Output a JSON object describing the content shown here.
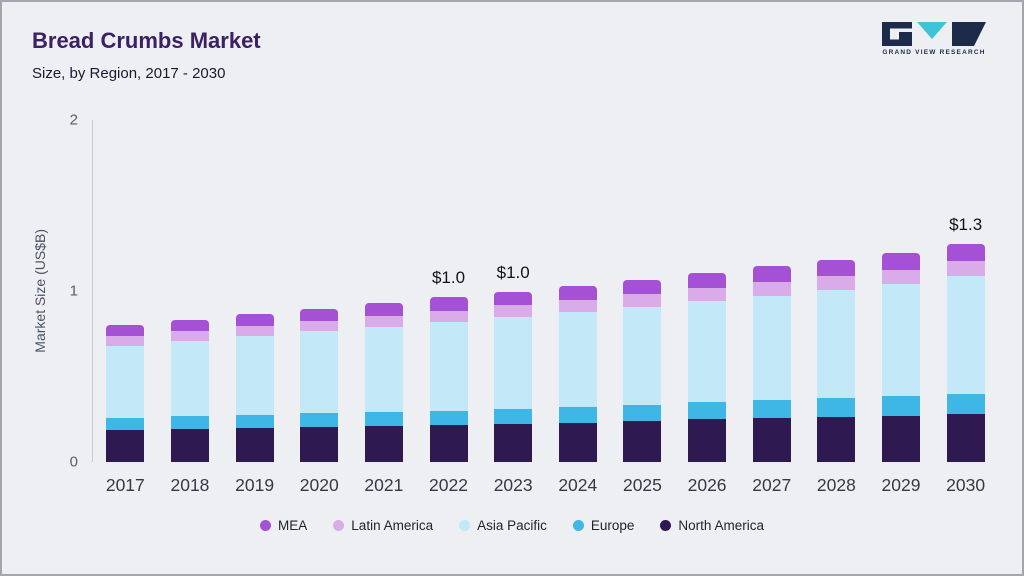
{
  "header": {
    "title": "Bread Crumbs Market",
    "subtitle": "Size, by Region, 2017 - 2030",
    "logo_text": "GRAND VIEW RESEARCH"
  },
  "chart_data": {
    "type": "bar",
    "stacked": true,
    "title": "Bread Crumbs Market Size, by Region, 2017 - 2030",
    "xlabel": "",
    "ylabel": "Market Size (US$B)",
    "ylim": [
      0,
      2
    ],
    "yticks": [
      0,
      1,
      2
    ],
    "grid": false,
    "legend_position": "bottom",
    "categories": [
      "2017",
      "2018",
      "2019",
      "2020",
      "2021",
      "2022",
      "2023",
      "2024",
      "2025",
      "2026",
      "2027",
      "2028",
      "2029",
      "2030"
    ],
    "series": [
      {
        "name": "North America",
        "color": "#2e1950",
        "values": [
          0.19,
          0.195,
          0.2,
          0.205,
          0.21,
          0.215,
          0.22,
          0.23,
          0.24,
          0.25,
          0.258,
          0.264,
          0.27,
          0.28
        ]
      },
      {
        "name": "Europe",
        "color": "#3eb6e6",
        "values": [
          0.07,
          0.073,
          0.076,
          0.079,
          0.082,
          0.086,
          0.089,
          0.092,
          0.096,
          0.1,
          0.105,
          0.11,
          0.115,
          0.12
        ]
      },
      {
        "name": "Asia Pacific",
        "color": "#c3e9f8",
        "values": [
          0.42,
          0.44,
          0.46,
          0.48,
          0.5,
          0.52,
          0.54,
          0.555,
          0.572,
          0.59,
          0.61,
          0.632,
          0.655,
          0.685
        ]
      },
      {
        "name": "Latin America",
        "color": "#d9abe9",
        "values": [
          0.055,
          0.057,
          0.059,
          0.061,
          0.063,
          0.065,
          0.067,
          0.07,
          0.073,
          0.076,
          0.079,
          0.082,
          0.085,
          0.088
        ]
      },
      {
        "name": "MEA",
        "color": "#a551d5",
        "values": [
          0.065,
          0.067,
          0.07,
          0.072,
          0.075,
          0.078,
          0.08,
          0.083,
          0.086,
          0.089,
          0.092,
          0.095,
          0.098,
          0.102
        ]
      }
    ],
    "annotations": [
      {
        "category": "2022",
        "text": "$1.0"
      },
      {
        "category": "2023",
        "text": "$1.0"
      },
      {
        "category": "2030",
        "text": "$1.3"
      }
    ],
    "legend": [
      "MEA",
      "Latin America",
      "Asia Pacific",
      "Europe",
      "North America"
    ]
  }
}
